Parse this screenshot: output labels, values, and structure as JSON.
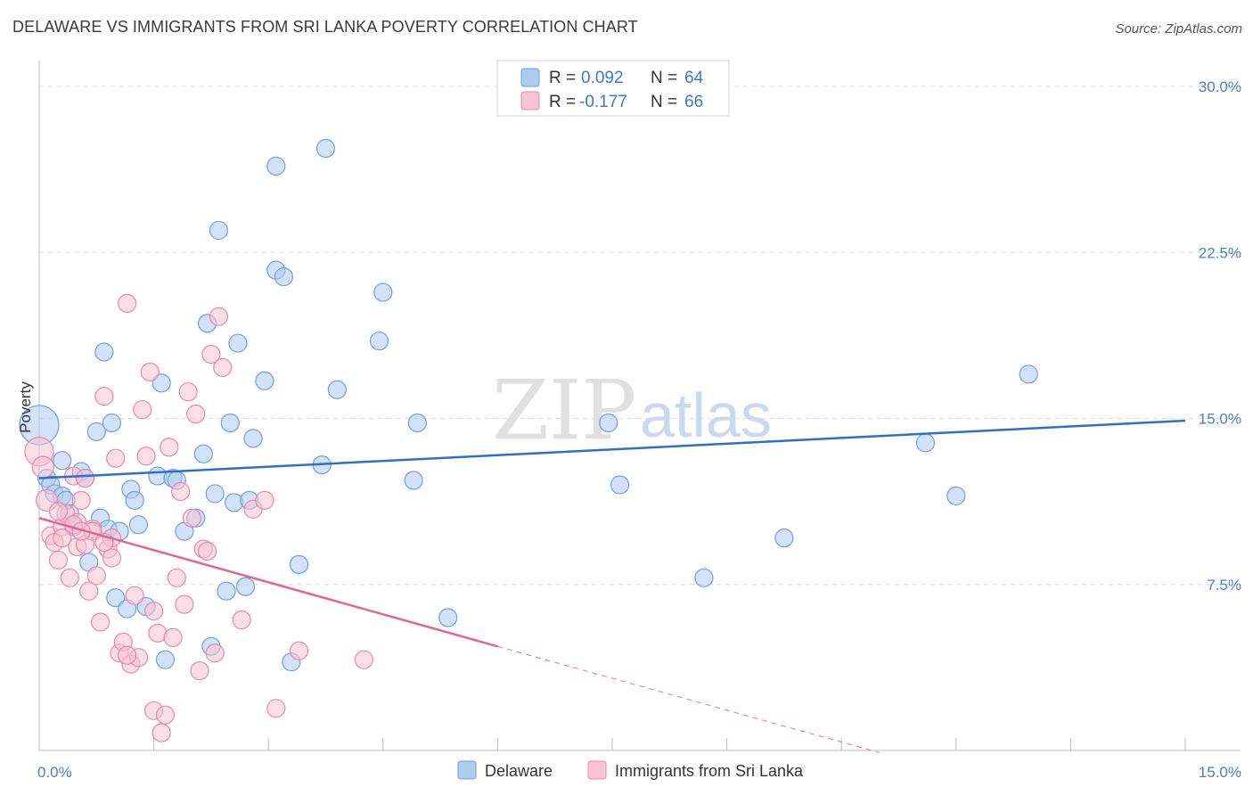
{
  "header": {
    "title": "DELAWARE VS IMMIGRANTS FROM SRI LANKA POVERTY CORRELATION CHART",
    "source": "Source: ZipAtlas.com"
  },
  "watermark": {
    "zip": "ZIP",
    "atlas": "atlas"
  },
  "legend": {
    "rows": [
      {
        "r_label": "R =",
        "r_value": "0.092",
        "n_label": "N =",
        "n_value": "64",
        "color": "#aecbf2"
      },
      {
        "r_label": "R =",
        "r_value": "-0.177",
        "n_label": "N =",
        "n_value": "66",
        "color": "#f9c3d4"
      }
    ]
  },
  "bottom_legend": [
    {
      "label": "Delaware",
      "color": "#aecbf2"
    },
    {
      "label": "Immigrants from Sri Lanka",
      "color": "#f9c3d4"
    }
  ],
  "chart_data": {
    "type": "scatter",
    "title": "DELAWARE VS IMMIGRANTS FROM SRI LANKA POVERTY CORRELATION CHART",
    "xlabel": "",
    "ylabel": "Poverty",
    "xlim": [
      0,
      15
    ],
    "ylim": [
      0,
      30
    ],
    "x_tick_labels": [
      "0.0%",
      "15.0%"
    ],
    "y_ticks": [
      7.5,
      15.0,
      22.5,
      30.0
    ],
    "y_tick_labels": [
      "7.5%",
      "15.0%",
      "22.5%",
      "30.0%"
    ],
    "grid": true,
    "legend_position": "top-center",
    "series": [
      {
        "name": "Delaware",
        "color": "#6f9fe0",
        "fill": "#aecbf2",
        "trend": {
          "x0": 0,
          "y0": 12.3,
          "x1": 15,
          "y1": 14.9,
          "dashed_from": null
        },
        "points": [
          [
            0.0,
            14.7,
            22
          ],
          [
            0.1,
            12.3,
            10
          ],
          [
            0.15,
            12.0,
            10
          ],
          [
            0.2,
            11.6,
            10
          ],
          [
            0.3,
            11.5,
            10
          ],
          [
            0.35,
            11.3,
            10
          ],
          [
            0.4,
            10.7,
            10
          ],
          [
            0.45,
            10.1,
            10
          ],
          [
            0.55,
            12.6,
            10
          ],
          [
            0.6,
            12.3,
            10
          ],
          [
            0.65,
            8.5,
            10
          ],
          [
            0.75,
            14.4,
            10
          ],
          [
            0.8,
            10.5,
            10
          ],
          [
            0.85,
            18.0,
            10
          ],
          [
            0.9,
            10.0,
            10
          ],
          [
            0.95,
            14.8,
            10
          ],
          [
            1.0,
            6.9,
            10
          ],
          [
            1.05,
            9.9,
            10
          ],
          [
            1.15,
            6.4,
            10
          ],
          [
            1.2,
            11.8,
            10
          ],
          [
            1.25,
            11.3,
            10
          ],
          [
            1.3,
            10.2,
            10
          ],
          [
            1.4,
            6.5,
            10
          ],
          [
            1.55,
            12.4,
            10
          ],
          [
            1.6,
            16.6,
            10
          ],
          [
            1.65,
            4.1,
            10
          ],
          [
            1.75,
            12.3,
            10
          ],
          [
            1.8,
            12.2,
            10
          ],
          [
            1.9,
            9.9,
            10
          ],
          [
            2.05,
            10.5,
            10
          ],
          [
            2.15,
            13.4,
            10
          ],
          [
            2.2,
            19.3,
            10
          ],
          [
            2.25,
            4.7,
            10
          ],
          [
            2.3,
            11.6,
            10
          ],
          [
            2.35,
            23.5,
            10
          ],
          [
            2.45,
            7.2,
            10
          ],
          [
            2.5,
            14.8,
            10
          ],
          [
            2.55,
            11.2,
            10
          ],
          [
            2.6,
            18.4,
            10
          ],
          [
            2.7,
            7.4,
            10
          ],
          [
            2.75,
            11.3,
            10
          ],
          [
            2.8,
            14.1,
            10
          ],
          [
            2.95,
            16.7,
            10
          ],
          [
            3.1,
            26.4,
            10
          ],
          [
            3.1,
            21.7,
            10
          ],
          [
            3.2,
            21.4,
            10
          ],
          [
            3.3,
            4.0,
            10
          ],
          [
            3.4,
            8.4,
            10
          ],
          [
            3.7,
            12.9,
            10
          ],
          [
            3.75,
            27.2,
            10
          ],
          [
            3.9,
            16.3,
            10
          ],
          [
            4.45,
            18.5,
            10
          ],
          [
            4.5,
            20.7,
            10
          ],
          [
            4.9,
            12.2,
            10
          ],
          [
            4.95,
            14.8,
            10
          ],
          [
            5.35,
            6.0,
            10
          ],
          [
            7.45,
            14.8,
            10
          ],
          [
            7.6,
            12.0,
            10
          ],
          [
            8.7,
            7.8,
            10
          ],
          [
            9.75,
            9.6,
            10
          ],
          [
            11.6,
            13.9,
            10
          ],
          [
            12.0,
            11.5,
            10
          ],
          [
            12.95,
            17.0,
            10
          ],
          [
            0.3,
            13.1,
            10
          ]
        ]
      },
      {
        "name": "Immigrants from Sri Lanka",
        "color": "#e889a8",
        "fill": "#f9c3d4",
        "trend": {
          "x0": 0,
          "y0": 10.5,
          "x1": 6.0,
          "y1": 4.7,
          "dashed_to_x": 11.0,
          "dashed_to_y": -0.1
        },
        "points": [
          [
            0.0,
            13.5,
            16
          ],
          [
            0.05,
            12.8,
            12
          ],
          [
            0.1,
            11.3,
            12
          ],
          [
            0.15,
            9.7,
            10
          ],
          [
            0.2,
            9.4,
            10
          ],
          [
            0.25,
            8.6,
            10
          ],
          [
            0.3,
            10.1,
            10
          ],
          [
            0.35,
            10.7,
            10
          ],
          [
            0.4,
            7.8,
            10
          ],
          [
            0.45,
            12.4,
            10
          ],
          [
            0.5,
            9.2,
            10
          ],
          [
            0.55,
            11.3,
            10
          ],
          [
            0.6,
            9.3,
            10
          ],
          [
            0.6,
            12.3,
            10
          ],
          [
            0.65,
            7.2,
            10
          ],
          [
            0.7,
            10.0,
            10
          ],
          [
            0.75,
            7.9,
            10
          ],
          [
            0.8,
            5.8,
            10
          ],
          [
            0.85,
            16.0,
            10
          ],
          [
            0.9,
            9.1,
            10
          ],
          [
            0.95,
            9.6,
            10
          ],
          [
            0.95,
            8.7,
            10
          ],
          [
            1.0,
            13.2,
            10
          ],
          [
            1.05,
            4.4,
            10
          ],
          [
            1.1,
            4.9,
            10
          ],
          [
            1.15,
            20.2,
            10
          ],
          [
            1.2,
            3.9,
            10
          ],
          [
            1.25,
            7.0,
            10
          ],
          [
            1.3,
            4.2,
            10
          ],
          [
            1.35,
            15.4,
            10
          ],
          [
            1.4,
            13.3,
            10
          ],
          [
            1.45,
            17.1,
            10
          ],
          [
            1.5,
            1.8,
            10
          ],
          [
            1.55,
            5.3,
            10
          ],
          [
            1.6,
            0.8,
            10
          ],
          [
            1.65,
            1.6,
            10
          ],
          [
            1.7,
            13.7,
            10
          ],
          [
            1.75,
            5.1,
            10
          ],
          [
            1.8,
            7.8,
            10
          ],
          [
            1.85,
            11.7,
            10
          ],
          [
            1.9,
            6.6,
            10
          ],
          [
            1.95,
            16.2,
            10
          ],
          [
            2.0,
            10.5,
            10
          ],
          [
            2.05,
            15.2,
            10
          ],
          [
            2.1,
            3.6,
            10
          ],
          [
            2.15,
            9.1,
            10
          ],
          [
            2.2,
            9.0,
            10
          ],
          [
            2.25,
            17.9,
            10
          ],
          [
            2.3,
            4.4,
            10
          ],
          [
            2.35,
            19.6,
            10
          ],
          [
            2.4,
            17.3,
            10
          ],
          [
            2.65,
            5.9,
            10
          ],
          [
            2.8,
            10.9,
            10
          ],
          [
            2.95,
            11.3,
            10
          ],
          [
            3.1,
            1.9,
            10
          ],
          [
            3.4,
            4.5,
            10
          ],
          [
            4.25,
            4.1,
            10
          ],
          [
            0.5,
            10.3,
            10
          ],
          [
            0.7,
            9.9,
            10
          ],
          [
            1.15,
            4.3,
            10
          ],
          [
            0.3,
            9.6,
            10
          ],
          [
            0.45,
            10.2,
            10
          ],
          [
            0.85,
            9.4,
            10
          ],
          [
            1.5,
            6.3,
            10
          ],
          [
            0.25,
            10.8,
            10
          ],
          [
            0.55,
            9.9,
            10
          ]
        ]
      }
    ]
  }
}
